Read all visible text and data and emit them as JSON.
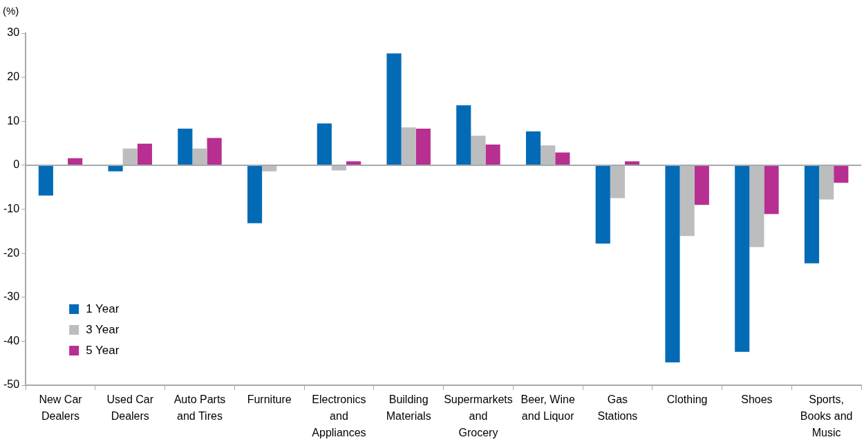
{
  "chart_data": {
    "type": "bar",
    "ylabel": "(%)",
    "categories": [
      "New Car Dealers",
      "Used Car Dealers",
      "Auto Parts and Tires",
      "Furniture",
      "Electronics and Appliances",
      "Building Materials",
      "Supermarkets and Grocery",
      "Beer, Wine and Liquor",
      "Gas Stations",
      "Clothing",
      "Shoes",
      "Sports, Books and Music"
    ],
    "series": [
      {
        "name": "1 Year",
        "color": "#036bb6",
        "values": [
          -6.9,
          -1.4,
          8.3,
          -13.2,
          9.5,
          25.4,
          13.6,
          7.7,
          -17.8,
          -44.8,
          -42.4,
          -22.3
        ]
      },
      {
        "name": "3 Year",
        "color": "#bcbdbf",
        "values": [
          null,
          3.8,
          3.8,
          -1.4,
          -1.2,
          8.6,
          6.7,
          4.5,
          -7.5,
          -16.1,
          -18.6,
          -7.8
        ]
      },
      {
        "name": "5 Year",
        "color": "#b72f90",
        "values": [
          1.6,
          4.9,
          6.2,
          null,
          0.9,
          8.3,
          4.7,
          2.9,
          0.9,
          -9.0,
          -11.1,
          -4.0
        ]
      }
    ],
    "ylim": [
      -50,
      30
    ],
    "yticks": [
      -50,
      -40,
      -30,
      -20,
      -10,
      0,
      10,
      20,
      30
    ],
    "ref_lines": [
      {
        "axis": "y",
        "value": 0,
        "color": "#a6a9ad"
      }
    ],
    "legend": "bottom left"
  }
}
